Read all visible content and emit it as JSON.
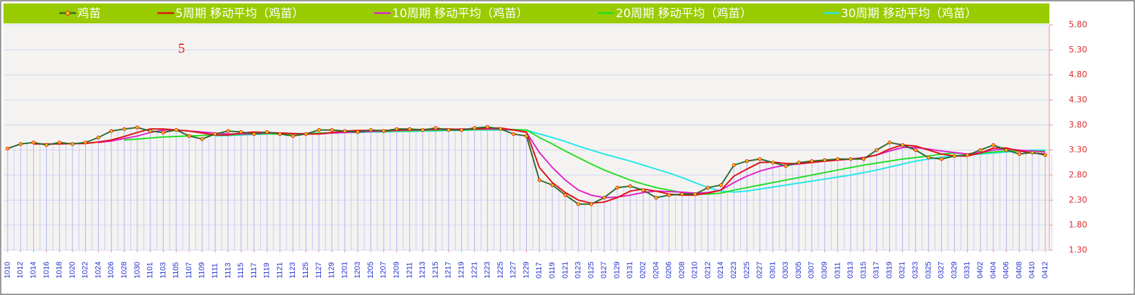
{
  "chart_data": {
    "type": "line",
    "annotations": [
      "5"
    ],
    "categories": [
      "1010",
      "1012",
      "1014",
      "1016",
      "1018",
      "1020",
      "1022",
      "1024",
      "1026",
      "1028",
      "1030",
      "1101",
      "1103",
      "1105",
      "1107",
      "1109",
      "1111",
      "1113",
      "1115",
      "1117",
      "1119",
      "1121",
      "1123",
      "1125",
      "1127",
      "1129",
      "1201",
      "1203",
      "1205",
      "1207",
      "1209",
      "1211",
      "1213",
      "1215",
      "1217",
      "1219",
      "1221",
      "1223",
      "1225",
      "1227",
      "1229",
      "0117",
      "0119",
      "0121",
      "0123",
      "0125",
      "0127",
      "0129",
      "0131",
      "0202",
      "0204",
      "0206",
      "0208",
      "0210",
      "0212",
      "0214",
      "0223",
      "0225",
      "0227",
      "0301",
      "0303",
      "0305",
      "0307",
      "0309",
      "0311",
      "0313",
      "0315",
      "0317",
      "0319",
      "0321",
      "0323",
      "0325",
      "0327",
      "0329",
      "0331",
      "0402",
      "0404",
      "0406",
      "0408",
      "0410",
      "0412"
    ],
    "series": [
      {
        "name": "鸡苗",
        "color": "#2e6b2e",
        "marker_color": "#e02020",
        "values": [
          3.33,
          3.42,
          3.45,
          3.4,
          3.45,
          3.42,
          3.45,
          3.55,
          3.68,
          3.72,
          3.75,
          3.68,
          3.65,
          3.7,
          3.58,
          3.52,
          3.62,
          3.68,
          3.66,
          3.62,
          3.66,
          3.62,
          3.58,
          3.62,
          3.7,
          3.7,
          3.68,
          3.66,
          3.7,
          3.68,
          3.72,
          3.72,
          3.7,
          3.74,
          3.7,
          3.7,
          3.74,
          3.76,
          3.72,
          3.62,
          3.58,
          2.7,
          2.6,
          2.4,
          2.22,
          2.22,
          2.35,
          2.55,
          2.58,
          2.5,
          2.35,
          2.4,
          2.42,
          2.42,
          2.55,
          2.6,
          3.0,
          3.08,
          3.12,
          3.05,
          2.98,
          3.05,
          3.08,
          3.1,
          3.12,
          3.12,
          3.12,
          3.3,
          3.45,
          3.4,
          3.3,
          3.15,
          3.12,
          3.18,
          3.2,
          3.3,
          3.4,
          3.3,
          3.22,
          3.25,
          3.2
        ]
      },
      {
        "name": "5周期 移动平均（鸡苗）",
        "color": "#dd1111",
        "values": [
          null,
          null,
          3.42,
          3.42,
          3.42,
          3.43,
          3.43,
          3.46,
          3.5,
          3.57,
          3.65,
          3.72,
          3.72,
          3.7,
          3.68,
          3.64,
          3.6,
          3.6,
          3.64,
          3.66,
          3.65,
          3.64,
          3.63,
          3.62,
          3.62,
          3.65,
          3.68,
          3.69,
          3.69,
          3.69,
          3.7,
          3.71,
          3.71,
          3.72,
          3.72,
          3.71,
          3.72,
          3.74,
          3.74,
          3.7,
          3.66,
          2.95,
          2.65,
          2.45,
          2.3,
          2.24,
          2.26,
          2.35,
          2.48,
          2.52,
          2.48,
          2.42,
          2.4,
          2.4,
          2.44,
          2.5,
          2.78,
          2.92,
          3.05,
          3.06,
          3.03,
          3.03,
          3.05,
          3.08,
          3.1,
          3.12,
          3.14,
          3.2,
          3.32,
          3.4,
          3.38,
          3.3,
          3.22,
          3.18,
          3.18,
          3.24,
          3.34,
          3.34,
          3.28,
          3.24,
          3.22
        ]
      },
      {
        "name": "10周期 移动平均（鸡苗）",
        "color": "#dd22cc",
        "values": [
          null,
          null,
          null,
          null,
          null,
          null,
          null,
          3.45,
          3.48,
          3.53,
          3.58,
          3.65,
          3.7,
          3.7,
          3.68,
          3.66,
          3.64,
          3.62,
          3.62,
          3.62,
          3.64,
          3.64,
          3.63,
          3.62,
          3.62,
          3.64,
          3.65,
          3.66,
          3.67,
          3.68,
          3.69,
          3.7,
          3.7,
          3.71,
          3.71,
          3.72,
          3.72,
          3.72,
          3.72,
          3.7,
          3.65,
          3.25,
          2.95,
          2.7,
          2.5,
          2.4,
          2.35,
          2.36,
          2.4,
          2.45,
          2.48,
          2.47,
          2.46,
          2.44,
          2.45,
          2.5,
          2.65,
          2.78,
          2.88,
          2.95,
          3.0,
          3.02,
          3.05,
          3.08,
          3.1,
          3.12,
          3.15,
          3.2,
          3.28,
          3.35,
          3.35,
          3.32,
          3.28,
          3.25,
          3.22,
          3.25,
          3.3,
          3.32,
          3.3,
          3.28,
          3.26
        ]
      },
      {
        "name": "20周期 移动平均（鸡苗）",
        "color": "#22dd22",
        "values": [
          null,
          null,
          null,
          null,
          null,
          null,
          null,
          null,
          null,
          3.5,
          3.52,
          3.54,
          3.56,
          3.57,
          3.58,
          3.59,
          3.6,
          3.6,
          3.61,
          3.62,
          3.62,
          3.62,
          3.62,
          3.63,
          3.64,
          3.64,
          3.65,
          3.66,
          3.67,
          3.67,
          3.68,
          3.68,
          3.69,
          3.69,
          3.7,
          3.7,
          3.71,
          3.71,
          3.71,
          3.71,
          3.7,
          3.55,
          3.42,
          3.28,
          3.15,
          3.02,
          2.9,
          2.8,
          2.7,
          2.62,
          2.55,
          2.5,
          2.45,
          2.42,
          2.42,
          2.44,
          2.5,
          2.55,
          2.6,
          2.65,
          2.7,
          2.75,
          2.8,
          2.85,
          2.9,
          2.95,
          3.0,
          3.04,
          3.08,
          3.12,
          3.15,
          3.18,
          3.22,
          3.24,
          3.22,
          3.24,
          3.26,
          3.28,
          3.28,
          3.28,
          3.28
        ]
      },
      {
        "name": "30周期 移动平均（鸡苗）",
        "color": "#22e8e8",
        "values": [
          null,
          null,
          null,
          null,
          null,
          null,
          null,
          null,
          null,
          null,
          null,
          null,
          null,
          null,
          null,
          null,
          3.58,
          3.59,
          3.6,
          3.61,
          3.62,
          3.62,
          3.63,
          3.63,
          3.64,
          3.64,
          3.65,
          3.65,
          3.66,
          3.66,
          3.67,
          3.67,
          3.68,
          3.68,
          3.69,
          3.69,
          3.7,
          3.7,
          3.7,
          3.7,
          3.7,
          3.62,
          3.55,
          3.47,
          3.38,
          3.3,
          3.22,
          3.15,
          3.08,
          3.0,
          2.92,
          2.84,
          2.75,
          2.65,
          2.55,
          2.48,
          2.46,
          2.48,
          2.52,
          2.56,
          2.6,
          2.64,
          2.68,
          2.72,
          2.76,
          2.8,
          2.85,
          2.9,
          2.96,
          3.02,
          3.08,
          3.12,
          3.16,
          3.18,
          3.2,
          3.22,
          3.24,
          3.26,
          3.28,
          3.3,
          3.3
        ]
      }
    ],
    "ylim": [
      1.3,
      5.8
    ],
    "yticks": [
      {
        "value": 1.3,
        "label": "1.30"
      },
      {
        "value": 1.8,
        "label": "1.80"
      },
      {
        "value": 2.3,
        "label": "2.30"
      },
      {
        "value": 2.8,
        "label": "2.80"
      },
      {
        "value": 3.3,
        "label": "3.30"
      },
      {
        "value": 3.8,
        "label": "3.80"
      },
      {
        "value": 4.3,
        "label": "4.30"
      },
      {
        "value": 4.8,
        "label": "4.80"
      },
      {
        "value": 5.3,
        "label": "5.30"
      },
      {
        "value": 5.8,
        "label": "5.80"
      }
    ],
    "grid": true,
    "legend": "top"
  }
}
